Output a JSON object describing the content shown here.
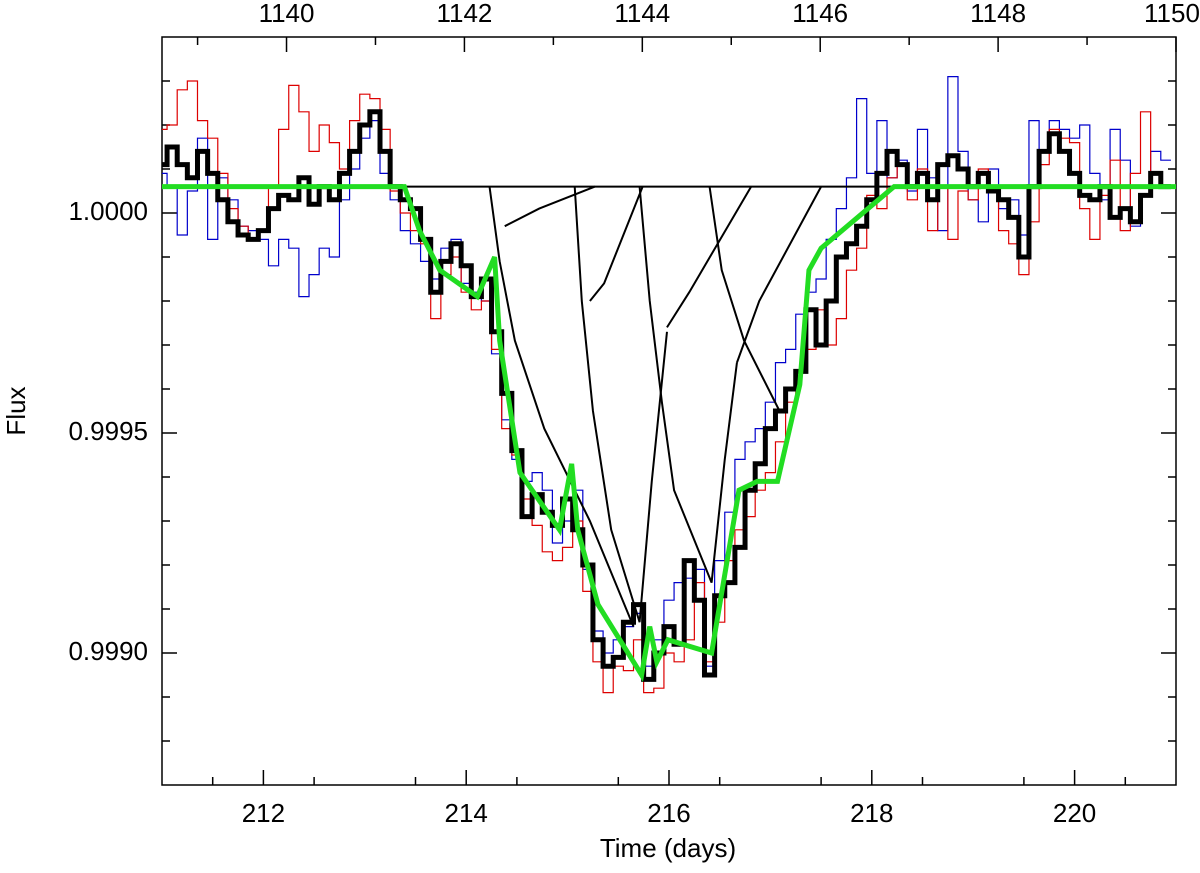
{
  "chart_data": {
    "type": "line",
    "xlabel": "Time (days)",
    "ylabel": "Flux",
    "xlim": [
      211,
      221
    ],
    "xticks": [
      212,
      214,
      216,
      218,
      220
    ],
    "xminorticks": [
      211.5,
      212.5,
      213.5,
      214.5,
      215.5,
      216.5,
      217.5,
      218.5,
      219.5,
      220.5
    ],
    "x2lim": [
      1138.6,
      1150
    ],
    "x2ticks": [
      1140,
      1142,
      1144,
      1146,
      1148,
      1150
    ],
    "x2minorticks": [
      1139,
      1141,
      1143,
      1145,
      1147,
      1149
    ],
    "ylim": [
      0.9987,
      1.0004
    ],
    "yticks": [
      {
        "value": 0.999,
        "label": "0.9990"
      },
      {
        "value": 0.9995,
        "label": "0.9995"
      },
      {
        "value": 1,
        "label": "1.0000"
      }
    ],
    "yminorticks": [
      0.9988,
      0.9989,
      0.9991,
      0.9992,
      0.9993,
      0.9994,
      0.9996,
      0.9997,
      0.9998,
      0.9999,
      1.0001,
      1.0002,
      1.0003
    ],
    "x": [
      211,
      211.1,
      211.2,
      211.3,
      211.4,
      211.5,
      211.6,
      211.7,
      211.8,
      211.9,
      212,
      212.1,
      212.2,
      212.3,
      212.4,
      212.5,
      212.6,
      212.7,
      212.8,
      212.9,
      213,
      213.1,
      213.2,
      213.3,
      213.4,
      213.5,
      213.6,
      213.7,
      213.8,
      213.9,
      214,
      214.1,
      214.2,
      214.3,
      214.4,
      214.5,
      214.6,
      214.7,
      214.8,
      214.9,
      215,
      215.1,
      215.2,
      215.3,
      215.4,
      215.5,
      215.6,
      215.7,
      215.8,
      215.9,
      216,
      216.1,
      216.2,
      216.3,
      216.4,
      216.5,
      216.6,
      216.7,
      216.8,
      216.9,
      217,
      217.1,
      217.2,
      217.3,
      217.4,
      217.5,
      217.6,
      217.7,
      217.8,
      217.9,
      218,
      218.1,
      218.2,
      218.3,
      218.4,
      218.5,
      218.6,
      218.7,
      218.8,
      218.9,
      219,
      219.1,
      219.2,
      219.3,
      219.4,
      219.5,
      219.6,
      219.7,
      219.8,
      219.9,
      220,
      220.1,
      220.2,
      220.3,
      220.4,
      220.5,
      220.6,
      220.7,
      220.8,
      220.9
    ],
    "series": [
      {
        "color": "#0000cc",
        "width": 1.2,
        "style": "step",
        "values": [
          1.00009,
          1.00006,
          0.99995,
          1.00005,
          1.00017,
          0.99994,
          1.00008,
          1.00003,
          0.99997,
          0.99996,
          0.99994,
          0.99988,
          0.99994,
          0.99992,
          0.99981,
          0.99986,
          0.99992,
          0.9999,
          1.00003,
          1.0001,
          1.00017,
          1.00021,
          1.00009,
          1.00003,
          0.99996,
          0.99993,
          0.99989,
          0.99985,
          0.99992,
          0.99994,
          0.99984,
          0.99982,
          0.9998,
          0.99968,
          0.99953,
          0.99944,
          0.99939,
          0.99941,
          0.99937,
          0.99925,
          0.9993,
          0.99937,
          0.99919,
          0.99905,
          0.999,
          0.99903,
          0.99906,
          0.99909,
          0.99897,
          0.99903,
          0.99912,
          0.99916,
          0.99917,
          0.99919,
          0.99897,
          0.99921,
          0.99932,
          0.99944,
          0.99948,
          0.99951,
          0.99957,
          0.99966,
          0.99969,
          0.99977,
          0.99982,
          0.99985,
          0.99994,
          1.00001,
          1.00008,
          1.00026,
          1.00009,
          1.00021,
          1.00008,
          1.00012,
          1.00005,
          1.00019,
          1.00008,
          0.99996,
          1.00031,
          1.00014,
          1.00003,
          0.99998,
          1.0001,
          1.00001,
          1.00003,
          0.99995,
          1.00021,
          1.00014,
          1.00021,
          1.00019,
          1.00017,
          1.0002,
          1.00009,
          1.00003,
          1.00019,
          1.00012,
          0.99997,
          1.00004,
          1.00014,
          1.00012
        ]
      },
      {
        "color": "#dd0000",
        "width": 1.2,
        "style": "step",
        "values": [
          1.00019,
          1.0002,
          1.00028,
          1.0003,
          1.00021,
          1.00017,
          1.00009,
          1.00001,
          0.99997,
          0.99994,
          0.99996,
          1.00006,
          1.00019,
          1.00029,
          1.00023,
          1.00014,
          1.0002,
          1.00016,
          1.0001,
          1.00021,
          1.00027,
          1.00026,
          1.00019,
          1.00005,
          1,
          0.99996,
          0.99993,
          0.99976,
          0.99986,
          0.9999,
          0.99982,
          0.99978,
          0.9998,
          0.99969,
          0.99951,
          0.99945,
          0.99935,
          0.99929,
          0.99923,
          0.99921,
          0.99924,
          0.9993,
          0.99914,
          0.99898,
          0.99891,
          0.99897,
          0.99896,
          0.99903,
          0.99891,
          0.99892,
          0.999,
          0.99898,
          0.99903,
          0.99916,
          0.99898,
          0.99907,
          0.99921,
          0.99928,
          0.99931,
          0.99937,
          0.99941,
          0.99948,
          0.99957,
          0.99964,
          0.99969,
          0.99978,
          0.9997,
          0.99976,
          0.99987,
          0.99992,
          1.00004,
          1.00001,
          1.00008,
          1.00011,
          1.00003,
          1.0001,
          0.99996,
          1.00006,
          0.99994,
          1.00005,
          1.00003,
          1.0001,
          1.00006,
          0.99996,
          0.99993,
          0.99986,
          0.99998,
          1.00011,
          1.00019,
          1.00017,
          1.00016,
          1.00001,
          0.99994,
          1.00004,
          1.00012,
          0.99996,
          1.00009,
          1.00023,
          1.00009,
          1.00006
        ]
      },
      {
        "color": "#000000",
        "width": 5,
        "style": "step",
        "values": [
          1.00011,
          1.00015,
          1.00011,
          1.00008,
          1.00014,
          1.00009,
          1.00003,
          0.99998,
          0.99995,
          0.99994,
          0.99996,
          1.00001,
          1.00004,
          1.00003,
          1.00008,
          1.00002,
          1.00006,
          1.00003,
          1.00009,
          1.00014,
          1.0002,
          1.00023,
          1.00014,
          1.00006,
          1.00003,
          1.00001,
          0.99994,
          0.99982,
          0.99989,
          0.99993,
          0.99988,
          0.99981,
          0.99985,
          0.99973,
          0.99959,
          0.99946,
          0.99931,
          0.99936,
          0.99932,
          0.99929,
          0.99935,
          0.99928,
          0.9992,
          0.99903,
          0.99897,
          0.99899,
          0.99907,
          0.99911,
          0.99894,
          0.999,
          0.99906,
          0.99902,
          0.99921,
          0.99912,
          0.99895,
          0.99913,
          0.99916,
          0.99924,
          0.99937,
          0.99943,
          0.99951,
          0.99955,
          0.9996,
          0.99964,
          0.99978,
          0.9997,
          0.9998,
          0.9999,
          0.99993,
          0.99997,
          1.00003,
          1.00009,
          1.00014,
          1.00011,
          1.00006,
          1.00009,
          1.00003,
          1.00011,
          1.00013,
          1.0001,
          1.00006,
          1.00009,
          1.00005,
          1.00003,
          0.99999,
          0.9999,
          1.00006,
          1.00014,
          1.00018,
          1.00014,
          1.00009,
          1.00004,
          1.00003,
          1.00006,
          0.99999,
          1.00001,
          0.99998,
          1.00004,
          1.00009,
          1.00006
        ]
      },
      {
        "color": "#000000",
        "width": 2,
        "x": [
          211,
          221
        ],
        "values": [
          1.00006,
          1.00006
        ]
      },
      {
        "color": "#000000",
        "width": 2,
        "x": [
          214.23,
          214.33,
          214.48,
          214.77,
          215.22,
          215.65
        ],
        "values": [
          1.00006,
          0.99989,
          0.99971,
          0.99951,
          0.9993,
          0.99906
        ]
      },
      {
        "color": "#000000",
        "width": 2,
        "x": [
          214.38,
          214.72,
          215.27
        ],
        "values": [
          0.99997,
          1.00001,
          1.00006
        ]
      },
      {
        "color": "#000000",
        "width": 2,
        "x": [
          215.07,
          215.14,
          215.25,
          215.43,
          215.71,
          215.83,
          215.98
        ],
        "values": [
          1.00006,
          0.9998,
          0.99955,
          0.99928,
          0.99907,
          0.99939,
          0.99973
        ]
      },
      {
        "color": "#000000",
        "width": 2,
        "x": [
          215.22,
          215.36,
          215.74
        ],
        "values": [
          0.9998,
          0.99984,
          1.00006
        ]
      },
      {
        "color": "#000000",
        "width": 2,
        "x": [
          215.71,
          215.81,
          215.93,
          216.05,
          216.42,
          216.55,
          216.67
        ],
        "values": [
          1.00006,
          0.9998,
          0.99957,
          0.99937,
          0.99916,
          0.99944,
          0.99966
        ]
      },
      {
        "color": "#000000",
        "width": 2,
        "x": [
          215.98,
          216.2,
          216.81
        ],
        "values": [
          0.99974,
          0.99982,
          1.00006
        ]
      },
      {
        "color": "#000000",
        "width": 2,
        "x": [
          216.4,
          216.52,
          216.74,
          217.09
        ],
        "values": [
          1.00006,
          0.99987,
          0.99971,
          0.99955
        ]
      },
      {
        "color": "#000000",
        "width": 2,
        "x": [
          216.67,
          216.89,
          217.5
        ],
        "values": [
          0.99966,
          0.9998,
          1.00006
        ]
      },
      {
        "color": "#22dd22",
        "width": 5,
        "x": [
          211,
          213.39,
          213.54,
          213.74,
          214.11,
          214.28,
          214.33,
          214.53,
          214.92,
          215.04,
          215.1,
          215.3,
          215.73,
          215.81,
          215.88,
          215.99,
          216.42,
          216.69,
          216.87,
          217.07,
          217.29,
          217.38,
          217.5,
          218.22,
          221
        ],
        "values": [
          1.00006,
          1.00006,
          0.99996,
          0.99987,
          0.99981,
          0.9999,
          0.99971,
          0.99941,
          0.99928,
          0.99943,
          0.99928,
          0.99911,
          0.99895,
          0.99906,
          0.99898,
          0.99903,
          0.999,
          0.99937,
          0.99939,
          0.99939,
          0.99961,
          0.99987,
          0.99992,
          1.00006,
          1.00006
        ]
      }
    ]
  }
}
